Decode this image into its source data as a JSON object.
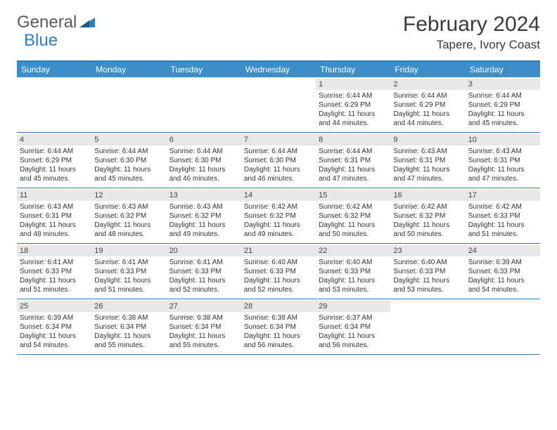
{
  "logo": {
    "text1": "General",
    "text2": "Blue"
  },
  "title": "February 2024",
  "location": "Tapere, Ivory Coast",
  "colors": {
    "header_bg": "#3d8dc9",
    "border": "#2d7fc1",
    "daynum_bg": "#e8e8e8",
    "text": "#333333",
    "logo_gray": "#5a5a5a",
    "logo_blue": "#2d7fc1"
  },
  "day_names": [
    "Sunday",
    "Monday",
    "Tuesday",
    "Wednesday",
    "Thursday",
    "Friday",
    "Saturday"
  ],
  "weeks": [
    [
      {
        "day": "",
        "sunrise": "",
        "sunset": "",
        "daylight": ""
      },
      {
        "day": "",
        "sunrise": "",
        "sunset": "",
        "daylight": ""
      },
      {
        "day": "",
        "sunrise": "",
        "sunset": "",
        "daylight": ""
      },
      {
        "day": "",
        "sunrise": "",
        "sunset": "",
        "daylight": ""
      },
      {
        "day": "1",
        "sunrise": "Sunrise: 6:44 AM",
        "sunset": "Sunset: 6:29 PM",
        "daylight": "Daylight: 11 hours and 44 minutes."
      },
      {
        "day": "2",
        "sunrise": "Sunrise: 6:44 AM",
        "sunset": "Sunset: 6:29 PM",
        "daylight": "Daylight: 11 hours and 44 minutes."
      },
      {
        "day": "3",
        "sunrise": "Sunrise: 6:44 AM",
        "sunset": "Sunset: 6:29 PM",
        "daylight": "Daylight: 11 hours and 45 minutes."
      }
    ],
    [
      {
        "day": "4",
        "sunrise": "Sunrise: 6:44 AM",
        "sunset": "Sunset: 6:29 PM",
        "daylight": "Daylight: 11 hours and 45 minutes."
      },
      {
        "day": "5",
        "sunrise": "Sunrise: 6:44 AM",
        "sunset": "Sunset: 6:30 PM",
        "daylight": "Daylight: 11 hours and 45 minutes."
      },
      {
        "day": "6",
        "sunrise": "Sunrise: 6:44 AM",
        "sunset": "Sunset: 6:30 PM",
        "daylight": "Daylight: 11 hours and 46 minutes."
      },
      {
        "day": "7",
        "sunrise": "Sunrise: 6:44 AM",
        "sunset": "Sunset: 6:30 PM",
        "daylight": "Daylight: 11 hours and 46 minutes."
      },
      {
        "day": "8",
        "sunrise": "Sunrise: 6:44 AM",
        "sunset": "Sunset: 6:31 PM",
        "daylight": "Daylight: 11 hours and 47 minutes."
      },
      {
        "day": "9",
        "sunrise": "Sunrise: 6:43 AM",
        "sunset": "Sunset: 6:31 PM",
        "daylight": "Daylight: 11 hours and 47 minutes."
      },
      {
        "day": "10",
        "sunrise": "Sunrise: 6:43 AM",
        "sunset": "Sunset: 6:31 PM",
        "daylight": "Daylight: 11 hours and 47 minutes."
      }
    ],
    [
      {
        "day": "11",
        "sunrise": "Sunrise: 6:43 AM",
        "sunset": "Sunset: 6:31 PM",
        "daylight": "Daylight: 11 hours and 48 minutes."
      },
      {
        "day": "12",
        "sunrise": "Sunrise: 6:43 AM",
        "sunset": "Sunset: 6:32 PM",
        "daylight": "Daylight: 11 hours and 48 minutes."
      },
      {
        "day": "13",
        "sunrise": "Sunrise: 6:43 AM",
        "sunset": "Sunset: 6:32 PM",
        "daylight": "Daylight: 11 hours and 49 minutes."
      },
      {
        "day": "14",
        "sunrise": "Sunrise: 6:42 AM",
        "sunset": "Sunset: 6:32 PM",
        "daylight": "Daylight: 11 hours and 49 minutes."
      },
      {
        "day": "15",
        "sunrise": "Sunrise: 6:42 AM",
        "sunset": "Sunset: 6:32 PM",
        "daylight": "Daylight: 11 hours and 50 minutes."
      },
      {
        "day": "16",
        "sunrise": "Sunrise: 6:42 AM",
        "sunset": "Sunset: 6:32 PM",
        "daylight": "Daylight: 11 hours and 50 minutes."
      },
      {
        "day": "17",
        "sunrise": "Sunrise: 6:42 AM",
        "sunset": "Sunset: 6:33 PM",
        "daylight": "Daylight: 11 hours and 51 minutes."
      }
    ],
    [
      {
        "day": "18",
        "sunrise": "Sunrise: 6:41 AM",
        "sunset": "Sunset: 6:33 PM",
        "daylight": "Daylight: 11 hours and 51 minutes."
      },
      {
        "day": "19",
        "sunrise": "Sunrise: 6:41 AM",
        "sunset": "Sunset: 6:33 PM",
        "daylight": "Daylight: 11 hours and 51 minutes."
      },
      {
        "day": "20",
        "sunrise": "Sunrise: 6:41 AM",
        "sunset": "Sunset: 6:33 PM",
        "daylight": "Daylight: 11 hours and 52 minutes."
      },
      {
        "day": "21",
        "sunrise": "Sunrise: 6:40 AM",
        "sunset": "Sunset: 6:33 PM",
        "daylight": "Daylight: 11 hours and 52 minutes."
      },
      {
        "day": "22",
        "sunrise": "Sunrise: 6:40 AM",
        "sunset": "Sunset: 6:33 PM",
        "daylight": "Daylight: 11 hours and 53 minutes."
      },
      {
        "day": "23",
        "sunrise": "Sunrise: 6:40 AM",
        "sunset": "Sunset: 6:33 PM",
        "daylight": "Daylight: 11 hours and 53 minutes."
      },
      {
        "day": "24",
        "sunrise": "Sunrise: 6:39 AM",
        "sunset": "Sunset: 6:33 PM",
        "daylight": "Daylight: 11 hours and 54 minutes."
      }
    ],
    [
      {
        "day": "25",
        "sunrise": "Sunrise: 6:39 AM",
        "sunset": "Sunset: 6:34 PM",
        "daylight": "Daylight: 11 hours and 54 minutes."
      },
      {
        "day": "26",
        "sunrise": "Sunrise: 6:38 AM",
        "sunset": "Sunset: 6:34 PM",
        "daylight": "Daylight: 11 hours and 55 minutes."
      },
      {
        "day": "27",
        "sunrise": "Sunrise: 6:38 AM",
        "sunset": "Sunset: 6:34 PM",
        "daylight": "Daylight: 11 hours and 55 minutes."
      },
      {
        "day": "28",
        "sunrise": "Sunrise: 6:38 AM",
        "sunset": "Sunset: 6:34 PM",
        "daylight": "Daylight: 11 hours and 56 minutes."
      },
      {
        "day": "29",
        "sunrise": "Sunrise: 6:37 AM",
        "sunset": "Sunset: 6:34 PM",
        "daylight": "Daylight: 11 hours and 56 minutes."
      },
      {
        "day": "",
        "sunrise": "",
        "sunset": "",
        "daylight": ""
      },
      {
        "day": "",
        "sunrise": "",
        "sunset": "",
        "daylight": ""
      }
    ]
  ]
}
